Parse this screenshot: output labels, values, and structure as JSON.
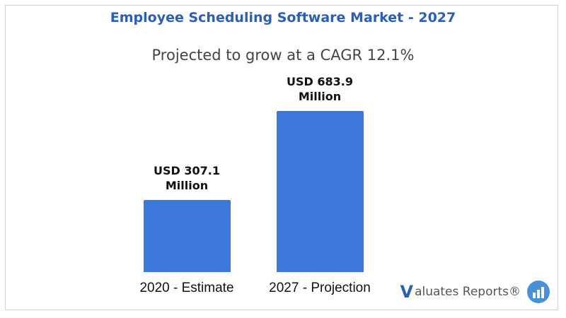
{
  "chart_data": {
    "type": "bar",
    "title": "Employee Scheduling Software Market - 2027",
    "subtitle": "Projected to grow at a CAGR 12.1%",
    "categories": [
      "2020 - Estimate",
      "2027  - Projection"
    ],
    "values": [
      307.1,
      683.9
    ],
    "value_labels": [
      "USD 307.1 Million",
      "USD 683.9 Million"
    ],
    "color": "#3b78d9"
  },
  "brand": {
    "initial": "V",
    "rest": "aluates Reports®"
  }
}
